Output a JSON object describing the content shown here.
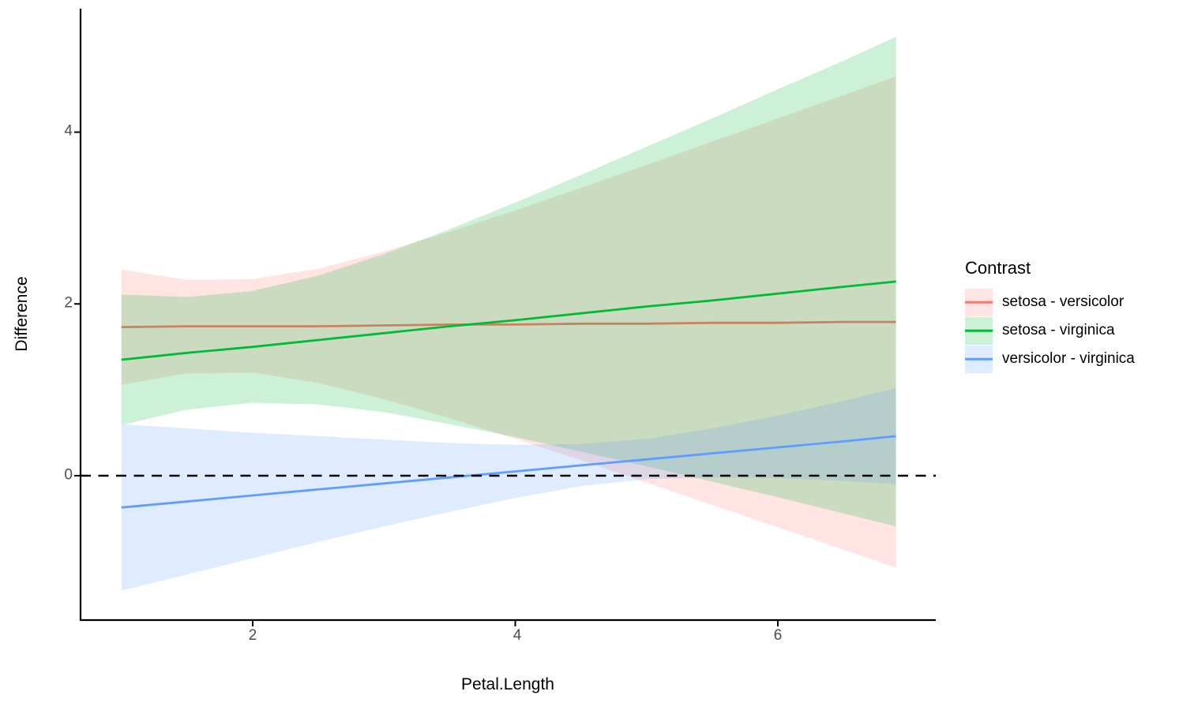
{
  "figure": {
    "background": "#FFFFFF",
    "axis_color": "#000000",
    "tick_label_color": "#4D4D4D"
  },
  "chart_data": {
    "type": "line",
    "title": "",
    "xlabel": "Petal.Length",
    "ylabel": "Difference",
    "grid": "off",
    "legend_position": "right",
    "legend_title": "Contrast",
    "x_ticks": [
      "2",
      "4",
      "6"
    ],
    "x_tick_values": [
      2,
      4,
      6
    ],
    "y_ticks": [
      "4",
      "2",
      "0"
    ],
    "y_tick_values": [
      4,
      2,
      0
    ],
    "xlim": [
      0.69,
      7.2
    ],
    "ylim": [
      -1.68,
      5.44
    ],
    "reference_line": {
      "y": 0,
      "style": "dashed",
      "color": "#000000"
    },
    "ribbon_opacity": 0.2,
    "x": [
      1,
      1.5,
      2,
      2.5,
      3,
      3.5,
      4,
      4.5,
      5,
      5.5,
      6,
      6.5,
      6.9
    ],
    "series": [
      {
        "name": "setosa - versicolor",
        "color": "#F8766D",
        "line": [
          1.73,
          1.74,
          1.74,
          1.74,
          1.75,
          1.76,
          1.76,
          1.77,
          1.77,
          1.78,
          1.78,
          1.79,
          1.79
        ],
        "upper": [
          2.4,
          2.28,
          2.29,
          2.41,
          2.61,
          2.84,
          3.09,
          3.35,
          3.62,
          3.89,
          4.16,
          4.43,
          4.65
        ],
        "lower": [
          1.06,
          1.19,
          1.2,
          1.08,
          0.89,
          0.67,
          0.43,
          0.18,
          -0.08,
          -0.34,
          -0.6,
          -0.86,
          -1.07
        ]
      },
      {
        "name": "setosa - virginica",
        "color": "#00BA38",
        "line": [
          1.35,
          1.43,
          1.5,
          1.58,
          1.66,
          1.74,
          1.81,
          1.89,
          1.97,
          2.04,
          2.12,
          2.2,
          2.26
        ],
        "upper": [
          2.11,
          2.08,
          2.15,
          2.33,
          2.58,
          2.87,
          3.18,
          3.5,
          3.83,
          4.16,
          4.5,
          4.83,
          5.11
        ],
        "lower": [
          0.59,
          0.77,
          0.85,
          0.83,
          0.74,
          0.6,
          0.45,
          0.28,
          0.11,
          -0.07,
          -0.25,
          -0.44,
          -0.59
        ]
      },
      {
        "name": "versicolor - virginica",
        "color": "#619CFF",
        "line": [
          -0.37,
          -0.3,
          -0.23,
          -0.16,
          -0.09,
          -0.02,
          0.05,
          0.12,
          0.19,
          0.26,
          0.33,
          0.4,
          0.46
        ],
        "upper": [
          0.6,
          0.55,
          0.5,
          0.46,
          0.42,
          0.38,
          0.36,
          0.37,
          0.43,
          0.55,
          0.7,
          0.87,
          1.02
        ],
        "lower": [
          -1.34,
          -1.15,
          -0.96,
          -0.77,
          -0.59,
          -0.42,
          -0.26,
          -0.12,
          -0.04,
          -0.02,
          -0.03,
          -0.06,
          -0.1
        ]
      }
    ]
  }
}
